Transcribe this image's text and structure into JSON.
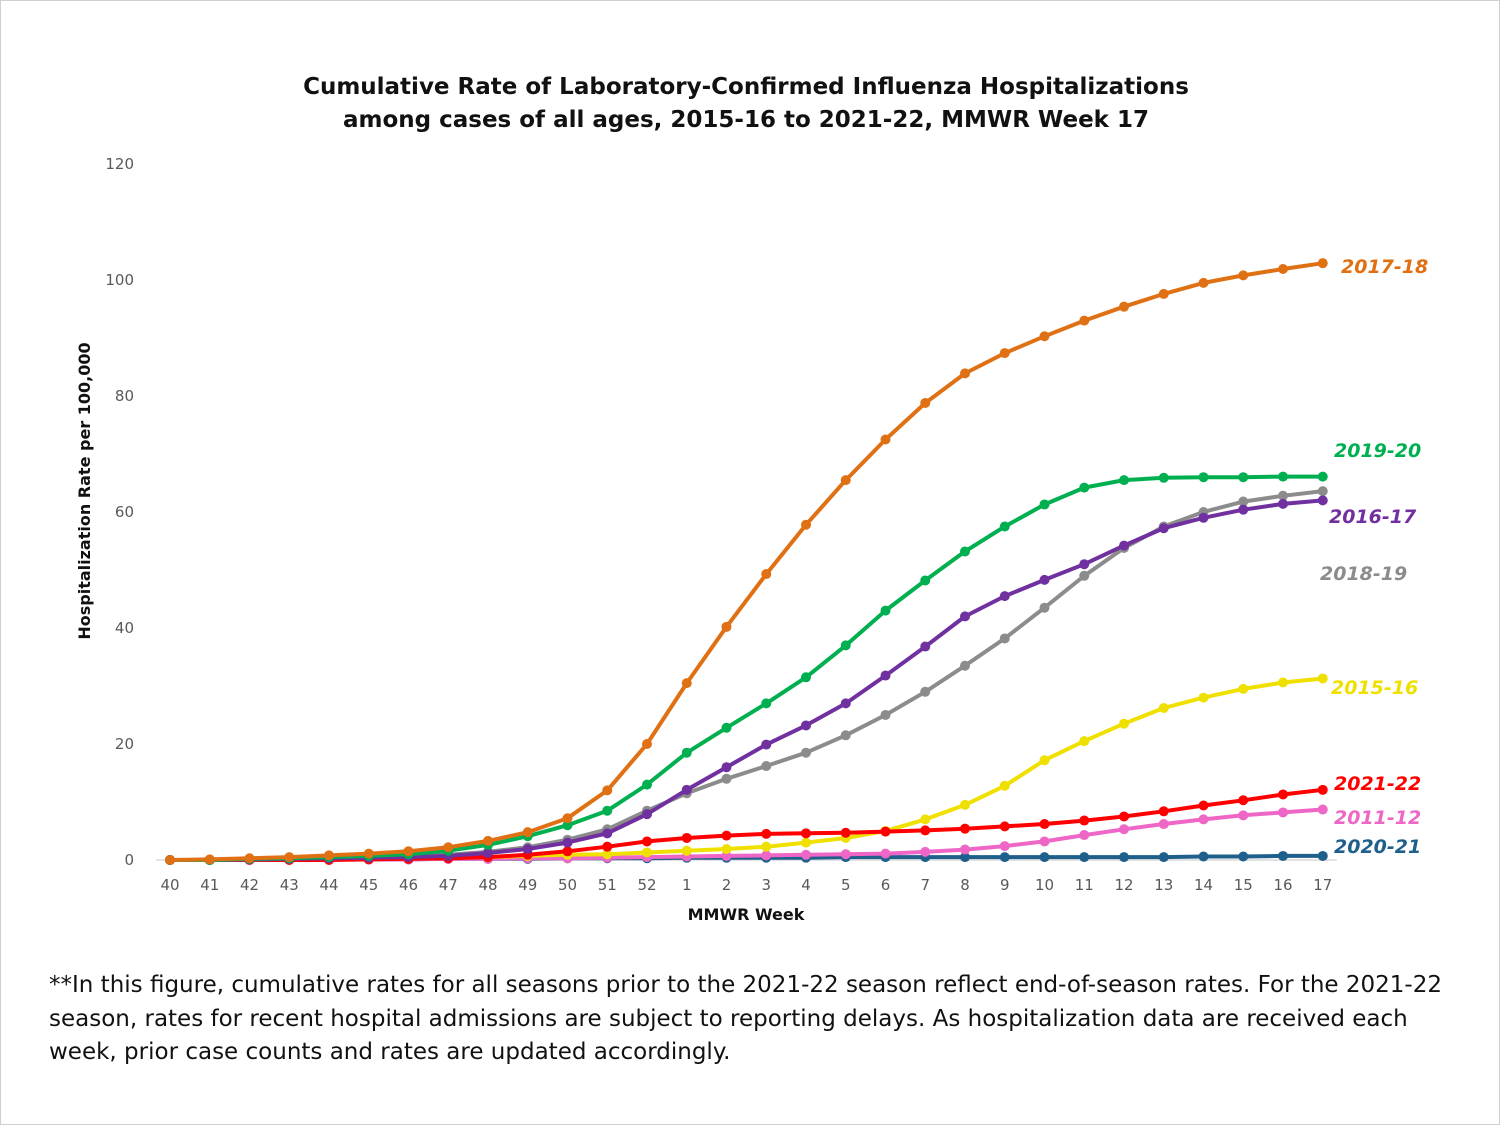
{
  "title": {
    "line1": "Cumulative Rate of Laboratory-Confirmed Influenza Hospitalizations",
    "line2": "among cases of all ages, 2015-16 to 2021-22, MMWR Week 17"
  },
  "footnote": "**In this figure, cumulative rates for all seasons prior to the 2021-22 season reflect end-of-season rates. For the 2021-22 season, rates for recent hospital admissions are subject to reporting delays. As hospitalization data are received each week, prior case counts and rates are updated accordingly.",
  "chart_data": {
    "type": "line",
    "xlabel": "MMWR Week",
    "ylabel": "Hospitalization  Rate per 100,000",
    "ylim": [
      0,
      120
    ],
    "yticks": [
      0,
      20,
      40,
      60,
      80,
      100,
      120
    ],
    "grid": false,
    "categories": [
      "40",
      "41",
      "42",
      "43",
      "44",
      "45",
      "46",
      "47",
      "48",
      "49",
      "50",
      "51",
      "52",
      "1",
      "2",
      "3",
      "4",
      "5",
      "6",
      "7",
      "8",
      "9",
      "10",
      "11",
      "12",
      "13",
      "14",
      "15",
      "16",
      "17"
    ],
    "series": [
      {
        "name": "2020-21",
        "color": "#1f5f8b",
        "values": [
          0,
          0,
          0.1,
          0.1,
          0.1,
          0.1,
          0.1,
          0.2,
          0.2,
          0.2,
          0.3,
          0.3,
          0.3,
          0.4,
          0.4,
          0.4,
          0.4,
          0.5,
          0.5,
          0.5,
          0.5,
          0.5,
          0.5,
          0.5,
          0.5,
          0.5,
          0.6,
          0.6,
          0.7,
          0.7
        ]
      },
      {
        "name": "2011-12",
        "color": "#ee66c6",
        "values": [
          0,
          0,
          0.1,
          0.1,
          0.1,
          0.1,
          0.1,
          0.2,
          0.2,
          0.3,
          0.3,
          0.4,
          0.5,
          0.6,
          0.7,
          0.8,
          0.9,
          1.0,
          1.1,
          1.4,
          1.8,
          2.4,
          3.2,
          4.3,
          5.3,
          6.2,
          7.0,
          7.7,
          8.2,
          8.7
        ]
      },
      {
        "name": "2015-16",
        "color": "#f0e000",
        "values": [
          0,
          0,
          0.1,
          0.1,
          0.2,
          0.2,
          0.3,
          0.4,
          0.5,
          0.7,
          0.9,
          1.0,
          1.3,
          1.6,
          1.9,
          2.3,
          3.0,
          3.8,
          5.0,
          7.0,
          9.5,
          12.8,
          17.2,
          20.5,
          23.5,
          26.2,
          28.0,
          29.5,
          30.6,
          31.3
        ]
      },
      {
        "name": "2021-22",
        "color": "#ff0000",
        "values": [
          0,
          0,
          0,
          0,
          0,
          0.1,
          0.2,
          0.3,
          0.5,
          0.9,
          1.5,
          2.3,
          3.2,
          3.8,
          4.2,
          4.5,
          4.6,
          4.7,
          4.9,
          5.1,
          5.4,
          5.8,
          6.2,
          6.8,
          7.5,
          8.4,
          9.4,
          10.3,
          11.3,
          12.1
        ]
      },
      {
        "name": "2018-19",
        "color": "#8c8c8c",
        "values": [
          0,
          0,
          0.1,
          0.2,
          0.3,
          0.4,
          0.6,
          0.9,
          1.4,
          2.2,
          3.5,
          5.3,
          8.5,
          11.5,
          14.0,
          16.2,
          18.5,
          21.5,
          25.0,
          29.0,
          33.5,
          38.2,
          43.5,
          49.0,
          53.8,
          57.5,
          60.0,
          61.8,
          62.8,
          63.6
        ]
      },
      {
        "name": "2016-17",
        "color": "#7030a0",
        "values": [
          0,
          0,
          0.1,
          0.2,
          0.3,
          0.4,
          0.5,
          0.7,
          1.2,
          1.9,
          3.0,
          4.6,
          7.9,
          12.1,
          16.0,
          19.9,
          23.2,
          27.0,
          31.8,
          36.8,
          42.0,
          45.5,
          48.3,
          51.0,
          54.2,
          57.2,
          59.0,
          60.4,
          61.4,
          62.0
        ]
      },
      {
        "name": "2019-20",
        "color": "#00b050",
        "values": [
          0,
          0,
          0.2,
          0.3,
          0.5,
          0.7,
          1.0,
          1.6,
          2.6,
          4.1,
          6.0,
          8.5,
          13.0,
          18.5,
          22.8,
          27.0,
          31.5,
          37.0,
          43.0,
          48.2,
          53.2,
          57.5,
          61.3,
          64.2,
          65.5,
          65.9,
          66.0,
          66.0,
          66.1,
          66.1
        ]
      },
      {
        "name": "2017-18",
        "color": "#e07014",
        "values": [
          0,
          0.1,
          0.3,
          0.5,
          0.8,
          1.1,
          1.5,
          2.2,
          3.3,
          4.8,
          7.2,
          12.0,
          20.0,
          30.5,
          40.2,
          49.3,
          57.8,
          65.5,
          72.5,
          78.8,
          83.9,
          87.4,
          90.3,
          93.0,
          95.4,
          97.6,
          99.5,
          100.8,
          101.9,
          102.9
        ]
      }
    ]
  }
}
